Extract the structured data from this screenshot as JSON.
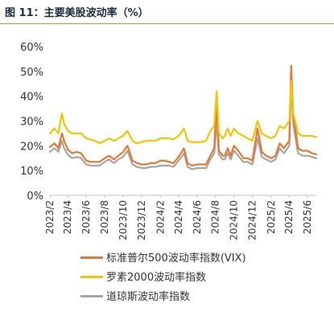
{
  "figure": {
    "title": "图 11：主要美股波动率（%）"
  },
  "colors": {
    "title_rule": "#e58a2f",
    "axis": "#bfbfbf"
  },
  "chart_data": {
    "type": "line",
    "title": "",
    "xlabel": "",
    "ylabel": "",
    "ylim": [
      0,
      60
    ],
    "yticks": [
      "0%",
      "10%",
      "20%",
      "30%",
      "40%",
      "50%",
      "60%"
    ],
    "xlim": [
      "2023-02",
      "2025-06"
    ],
    "xticks": [
      "2023/2",
      "2023/4",
      "2023/6",
      "2023/8",
      "2023/10",
      "2023/12",
      "2024/2",
      "2024/4",
      "2024/6",
      "2024/8",
      "2024/10",
      "2024/12",
      "2025/2",
      "2025/4",
      "2025/6"
    ],
    "grid": false,
    "legend_position": "bottom",
    "series": [
      {
        "name": "标准普尔500波动率指数(VIX)",
        "color": "#e8782e",
        "x": [
          "2023-02",
          "2023-02-16",
          "2023-03",
          "2023-03-13",
          "2023-03-20",
          "2023-04",
          "2023-04-15",
          "2023-05",
          "2023-05-15",
          "2023-06",
          "2023-06-15",
          "2023-07",
          "2023-07-15",
          "2023-08",
          "2023-08-15",
          "2023-09",
          "2023-09-15",
          "2023-10",
          "2023-10-15",
          "2023-11",
          "2023-11-15",
          "2023-12",
          "2023-12-15",
          "2024-01",
          "2024-01-15",
          "2024-02",
          "2024-02-15",
          "2024-03",
          "2024-03-15",
          "2024-04",
          "2024-04-19",
          "2024-05",
          "2024-05-15",
          "2024-06",
          "2024-06-15",
          "2024-07",
          "2024-07-15",
          "2024-07-28",
          "2024-08-05",
          "2024-08-12",
          "2024-08-25",
          "2024-09",
          "2024-09-10",
          "2024-09-20",
          "2024-10",
          "2024-10-15",
          "2024-11",
          "2024-11-15",
          "2024-12",
          "2024-12-18",
          "2025-01",
          "2025-01-15",
          "2025-02",
          "2025-02-15",
          "2025-03",
          "2025-03-15",
          "2025-04-02",
          "2025-04-08",
          "2025-04-15",
          "2025-04-25",
          "2025-05",
          "2025-05-15",
          "2025-06",
          "2025-06-15",
          "2025-06-30"
        ],
        "values": [
          19.5,
          21,
          19,
          25,
          22,
          18.5,
          17,
          17.5,
          17,
          14,
          13.5,
          13.5,
          13.5,
          15,
          16,
          14.5,
          16,
          17.5,
          20,
          14,
          13,
          12.5,
          12.5,
          13,
          13,
          14,
          14,
          13.5,
          13,
          15.5,
          19,
          13,
          12,
          12.5,
          12.5,
          12.5,
          16,
          19,
          38.6,
          18,
          16,
          16,
          19,
          16,
          20,
          18,
          15,
          15,
          14,
          27,
          17.5,
          16,
          15,
          16,
          21,
          19,
          22,
          52.3,
          32,
          24,
          19,
          18,
          18,
          17,
          16.5
        ]
      },
      {
        "name": "罗素2000波动率指数",
        "color": "#f5c400",
        "x": [
          "2023-02",
          "2023-02-16",
          "2023-03",
          "2023-03-13",
          "2023-03-20",
          "2023-04",
          "2023-04-15",
          "2023-05",
          "2023-05-15",
          "2023-06",
          "2023-06-15",
          "2023-07",
          "2023-07-15",
          "2023-08",
          "2023-08-15",
          "2023-09",
          "2023-09-15",
          "2023-10",
          "2023-10-15",
          "2023-11",
          "2023-11-15",
          "2023-12",
          "2023-12-15",
          "2024-01",
          "2024-01-15",
          "2024-02",
          "2024-02-15",
          "2024-03",
          "2024-03-15",
          "2024-04",
          "2024-04-19",
          "2024-05",
          "2024-05-15",
          "2024-06",
          "2024-06-15",
          "2024-07",
          "2024-07-15",
          "2024-07-28",
          "2024-08-05",
          "2024-08-12",
          "2024-08-25",
          "2024-09",
          "2024-09-10",
          "2024-09-20",
          "2024-10",
          "2024-10-15",
          "2024-11",
          "2024-11-15",
          "2024-12",
          "2024-12-18",
          "2025-01",
          "2025-01-15",
          "2025-02",
          "2025-02-15",
          "2025-03",
          "2025-03-15",
          "2025-04-02",
          "2025-04-08",
          "2025-04-15",
          "2025-04-25",
          "2025-05",
          "2025-05-15",
          "2025-06",
          "2025-06-15",
          "2025-06-30"
        ],
        "values": [
          25,
          27,
          25,
          33,
          29,
          26,
          25,
          25,
          25,
          23,
          22.5,
          22,
          21,
          22,
          23,
          22,
          23,
          24,
          26,
          22,
          21,
          21.5,
          22,
          22,
          22,
          23,
          23,
          23,
          22.5,
          24,
          27,
          22,
          21.5,
          21.5,
          21.5,
          22,
          26,
          28,
          42,
          25,
          23,
          24,
          27,
          24,
          27,
          25,
          24,
          23,
          22,
          30,
          25,
          24,
          23,
          24,
          28,
          27,
          30,
          46,
          33,
          28,
          25,
          24,
          24,
          24,
          23.5
        ]
      },
      {
        "name": "道琼斯波动率指数",
        "color": "#a6a6a6",
        "x": [
          "2023-02",
          "2023-02-16",
          "2023-03",
          "2023-03-13",
          "2023-03-20",
          "2023-04",
          "2023-04-15",
          "2023-05",
          "2023-05-15",
          "2023-06",
          "2023-06-15",
          "2023-07",
          "2023-07-15",
          "2023-08",
          "2023-08-15",
          "2023-09",
          "2023-09-15",
          "2023-10",
          "2023-10-15",
          "2023-11",
          "2023-11-15",
          "2023-12",
          "2023-12-15",
          "2024-01",
          "2024-01-15",
          "2024-02",
          "2024-02-15",
          "2024-03",
          "2024-03-15",
          "2024-04",
          "2024-04-19",
          "2024-05",
          "2024-05-15",
          "2024-06",
          "2024-06-15",
          "2024-07",
          "2024-07-15",
          "2024-07-28",
          "2024-08-05",
          "2024-08-12",
          "2024-08-25",
          "2024-09",
          "2024-09-10",
          "2024-09-20",
          "2024-10",
          "2024-10-15",
          "2024-11",
          "2024-11-15",
          "2024-12",
          "2024-12-18",
          "2025-01",
          "2025-01-15",
          "2025-02",
          "2025-02-15",
          "2025-03",
          "2025-03-15",
          "2025-04-02",
          "2025-04-08",
          "2025-04-15",
          "2025-04-25",
          "2025-05",
          "2025-05-15",
          "2025-06",
          "2025-06-15",
          "2025-06-30"
        ],
        "values": [
          17.5,
          19,
          17.5,
          22,
          19,
          16.5,
          15,
          15.5,
          15,
          12.5,
          12,
          12,
          12,
          13.5,
          14.5,
          13,
          14.5,
          15.5,
          18,
          12.5,
          11.5,
          11,
          11,
          11.5,
          11.5,
          12,
          12,
          12,
          11.5,
          14,
          17,
          11.5,
          10.5,
          11,
          11,
          11,
          14.5,
          17,
          30,
          16.5,
          14.5,
          14.5,
          17,
          14.5,
          18,
          16,
          13.5,
          13.5,
          12.5,
          23,
          15.5,
          14.5,
          13.5,
          14.5,
          19,
          17,
          20,
          45,
          29,
          21,
          17,
          16,
          16,
          15.5,
          15
        ]
      }
    ]
  }
}
